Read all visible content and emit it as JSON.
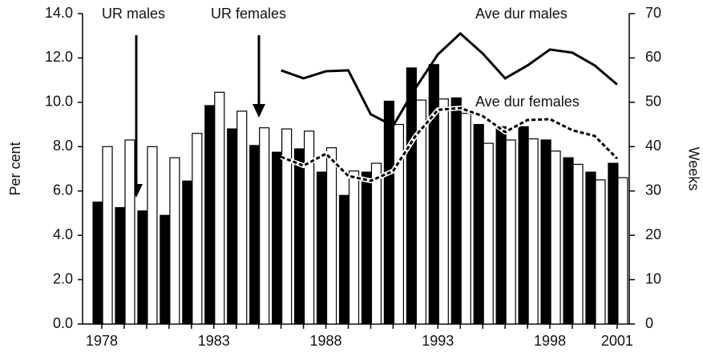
{
  "chart_data": {
    "type": "bar",
    "categories": [
      "1978",
      null,
      null,
      null,
      null,
      "1983",
      null,
      null,
      null,
      null,
      "1988",
      null,
      null,
      null,
      null,
      "1993",
      null,
      null,
      null,
      null,
      "1998",
      null,
      null,
      "2001"
    ],
    "ylabel": "Per cent",
    "y2label": "Weeks",
    "ylim": [
      0,
      14
    ],
    "yticks": [
      {
        "value": 0,
        "label": "0.0"
      },
      {
        "value": 2,
        "label": "2.0"
      },
      {
        "value": 4,
        "label": "4.0"
      },
      {
        "value": 6,
        "label": "6.0"
      },
      {
        "value": 8,
        "label": "8.0"
      },
      {
        "value": 10,
        "label": "10.0"
      },
      {
        "value": 12,
        "label": "12.0"
      },
      {
        "value": 14,
        "label": "14.0"
      }
    ],
    "y2lim": [
      0,
      70
    ],
    "y2ticks": [
      0,
      10,
      20,
      30,
      40,
      50,
      60,
      70
    ],
    "series": [
      {
        "name": "UR males",
        "type": "bar",
        "axis": "y",
        "color": "#000000",
        "values": [
          5.5,
          5.25,
          5.1,
          4.9,
          6.45,
          9.85,
          8.8,
          8.05,
          7.75,
          7.9,
          6.85,
          5.8,
          6.85,
          10.05,
          11.55,
          11.7,
          10.2,
          9.0,
          8.9,
          8.9,
          8.3,
          7.5,
          6.85,
          7.25
        ]
      },
      {
        "name": "UR females",
        "type": "bar",
        "axis": "y",
        "color": "#ffffff",
        "values": [
          8.0,
          8.3,
          8.0,
          7.5,
          8.6,
          10.45,
          9.6,
          8.85,
          8.8,
          8.7,
          7.95,
          6.9,
          7.25,
          9.0,
          10.1,
          10.15,
          9.5,
          8.15,
          8.3,
          8.35,
          7.8,
          7.2,
          6.5,
          6.6
        ]
      },
      {
        "name": "Ave dur males",
        "type": "line",
        "axis": "y2",
        "color": "#000000",
        "style": "solid",
        "values": [
          null,
          null,
          null,
          null,
          null,
          null,
          null,
          null,
          57.2,
          55.4,
          57.0,
          57.2,
          47.3,
          44.7,
          53.2,
          60.8,
          65.5,
          61.0,
          55.4,
          58.3,
          61.9,
          61.2,
          58.3,
          54.0
        ]
      },
      {
        "name": "Ave dur females",
        "type": "line",
        "axis": "y2",
        "color": "#000000",
        "style": "dashed",
        "values": [
          null,
          null,
          null,
          null,
          null,
          null,
          null,
          null,
          37.7,
          35.7,
          38.4,
          33.4,
          32.3,
          34.5,
          42.4,
          48.3,
          48.7,
          46.9,
          43.3,
          46.0,
          46.2,
          43.7,
          42.4,
          37.3
        ]
      }
    ]
  }
}
